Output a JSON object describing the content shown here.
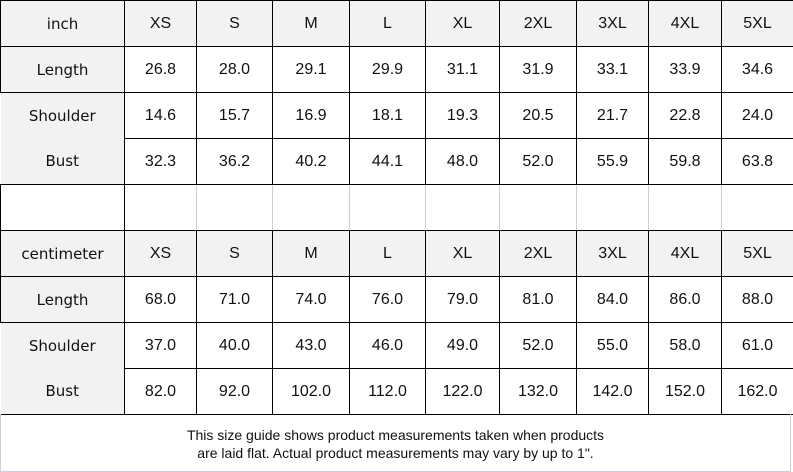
{
  "inch_table": {
    "unit_label": "inch",
    "sizes": [
      "XS",
      "S",
      "M",
      "L",
      "XL",
      "2XL",
      "3XL",
      "4XL",
      "5XL"
    ],
    "rows": [
      {
        "label": "Length",
        "values": [
          "26.8",
          "28.0",
          "29.1",
          "29.9",
          "31.1",
          "31.9",
          "33.1",
          "33.9",
          "34.6"
        ]
      },
      {
        "label": "Shoulder",
        "values": [
          "14.6",
          "15.7",
          "16.9",
          "18.1",
          "19.3",
          "20.5",
          "21.7",
          "22.8",
          "24.0"
        ]
      },
      {
        "label": "Bust",
        "values": [
          "32.3",
          "36.2",
          "40.2",
          "44.1",
          "48.0",
          "52.0",
          "55.9",
          "59.8",
          "63.8"
        ]
      }
    ]
  },
  "cm_table": {
    "unit_label": "centimeter",
    "sizes": [
      "XS",
      "S",
      "M",
      "L",
      "XL",
      "2XL",
      "3XL",
      "4XL",
      "5XL"
    ],
    "rows": [
      {
        "label": "Length",
        "values": [
          "68.0",
          "71.0",
          "74.0",
          "76.0",
          "79.0",
          "81.0",
          "84.0",
          "86.0",
          "88.0"
        ]
      },
      {
        "label": "Shoulder",
        "values": [
          "37.0",
          "40.0",
          "43.0",
          "46.0",
          "49.0",
          "52.0",
          "55.0",
          "58.0",
          "61.0"
        ]
      },
      {
        "label": "Bust",
        "values": [
          "82.0",
          "92.0",
          "102.0",
          "112.0",
          "122.0",
          "132.0",
          "142.0",
          "152.0",
          "162.0"
        ]
      }
    ]
  },
  "footer": {
    "line1": "This size guide shows product measurements taken when products",
    "line2": "are laid flat. Actual product measurements may vary by up to 1\"."
  }
}
